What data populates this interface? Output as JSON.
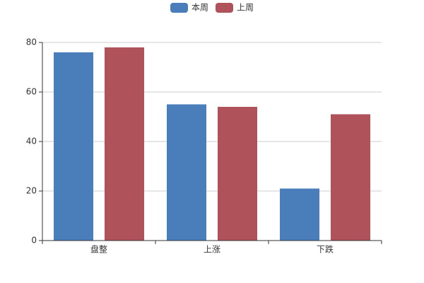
{
  "chart_data": {
    "type": "bar",
    "categories": [
      "盘整",
      "上涨",
      "下跌"
    ],
    "series": [
      {
        "name": "本周",
        "color": "#4a7ebb",
        "values": [
          76,
          55,
          21
        ]
      },
      {
        "name": "上周",
        "color": "#b0525a",
        "values": [
          78,
          54,
          51
        ]
      }
    ],
    "ylim": [
      0,
      80
    ],
    "yticks": [
      0,
      20,
      40,
      60,
      80
    ],
    "grid": true,
    "legend": "top"
  }
}
